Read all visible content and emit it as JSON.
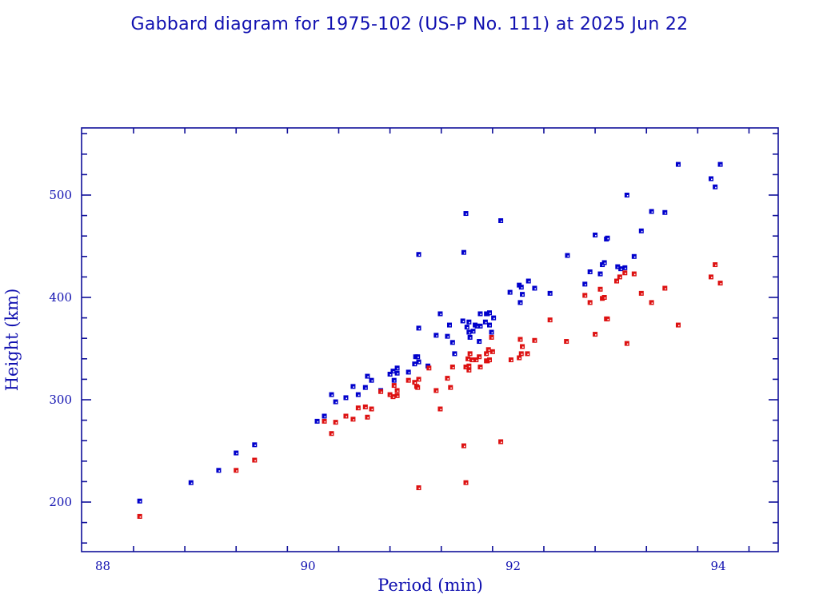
{
  "chart_data": {
    "type": "scatter",
    "title": "Gabbard diagram for 1975-102 (US-P No. 111) at 2025 Jun 22",
    "xlabel": "Period (min)",
    "ylabel": "Height (km)",
    "xlim": [
      87.8,
      94.6
    ],
    "ylim": [
      154,
      567
    ],
    "x_major_ticks": [
      88,
      90,
      92,
      94
    ],
    "x_tick_labels": [
      "88",
      "90",
      "92",
      "94"
    ],
    "x_minor_step": 0.5,
    "y_major_ticks": [
      200,
      300,
      400,
      500
    ],
    "y_tick_labels": [
      "200",
      "300",
      "400",
      "500"
    ],
    "y_minor_step": 20,
    "grid": false,
    "legend": "none",
    "series": [
      {
        "name": "Apogee",
        "color": "#0000cc",
        "points": [
          [
            88.36,
            201
          ],
          [
            88.86,
            219
          ],
          [
            89.13,
            231
          ],
          [
            89.3,
            248
          ],
          [
            89.48,
            256
          ],
          [
            90.09,
            279
          ],
          [
            90.16,
            284
          ],
          [
            90.23,
            305
          ],
          [
            90.27,
            298
          ],
          [
            90.37,
            302
          ],
          [
            90.44,
            313
          ],
          [
            90.49,
            305
          ],
          [
            90.56,
            312
          ],
          [
            90.58,
            323
          ],
          [
            90.62,
            319
          ],
          [
            90.71,
            309
          ],
          [
            90.8,
            325
          ],
          [
            90.83,
            328
          ],
          [
            90.84,
            319
          ],
          [
            90.87,
            331
          ],
          [
            90.87,
            326
          ],
          [
            90.98,
            327
          ],
          [
            91.04,
            335
          ],
          [
            91.05,
            342
          ],
          [
            91.07,
            342
          ],
          [
            91.08,
            337
          ],
          [
            91.08,
            370
          ],
          [
            91.08,
            442
          ],
          [
            91.17,
            333
          ],
          [
            91.25,
            363
          ],
          [
            91.29,
            384
          ],
          [
            91.38,
            373
          ],
          [
            91.36,
            362
          ],
          [
            91.41,
            356
          ],
          [
            91.43,
            345
          ],
          [
            91.52,
            444
          ],
          [
            91.51,
            377
          ],
          [
            91.54,
            482
          ],
          [
            91.55,
            371
          ],
          [
            91.57,
            376
          ],
          [
            91.57,
            366
          ],
          [
            91.58,
            361
          ],
          [
            91.61,
            367
          ],
          [
            91.63,
            373
          ],
          [
            91.65,
            372
          ],
          [
            91.68,
            372
          ],
          [
            91.67,
            357
          ],
          [
            91.68,
            384
          ],
          [
            91.74,
            384
          ],
          [
            91.75,
            384
          ],
          [
            91.77,
            385
          ],
          [
            91.73,
            376
          ],
          [
            91.77,
            373
          ],
          [
            91.79,
            366
          ],
          [
            91.81,
            380
          ],
          [
            91.88,
            475
          ],
          [
            91.97,
            405
          ],
          [
            92.06,
            412
          ],
          [
            92.08,
            410
          ],
          [
            92.09,
            403
          ],
          [
            92.07,
            395
          ],
          [
            92.15,
            416
          ],
          [
            92.21,
            409
          ],
          [
            92.36,
            404
          ],
          [
            92.53,
            441
          ],
          [
            92.7,
            413
          ],
          [
            92.75,
            425
          ],
          [
            92.8,
            461
          ],
          [
            92.85,
            423
          ],
          [
            92.87,
            432
          ],
          [
            92.89,
            434
          ],
          [
            92.91,
            457
          ],
          [
            92.92,
            458
          ],
          [
            93.02,
            430
          ],
          [
            93.05,
            428
          ],
          [
            93.09,
            429
          ],
          [
            93.11,
            500
          ],
          [
            93.18,
            440
          ],
          [
            93.25,
            465
          ],
          [
            93.35,
            484
          ],
          [
            93.48,
            483
          ],
          [
            93.61,
            530
          ],
          [
            93.93,
            516
          ],
          [
            93.97,
            508
          ],
          [
            94.02,
            530
          ]
        ]
      },
      {
        "name": "Perigee",
        "color": "#dd1111",
        "points": [
          [
            88.36,
            186
          ],
          [
            89.3,
            231
          ],
          [
            89.48,
            241
          ],
          [
            90.16,
            279
          ],
          [
            90.23,
            267
          ],
          [
            90.27,
            278
          ],
          [
            90.37,
            284
          ],
          [
            90.44,
            281
          ],
          [
            90.49,
            292
          ],
          [
            90.56,
            293
          ],
          [
            90.58,
            283
          ],
          [
            90.62,
            291
          ],
          [
            90.71,
            308
          ],
          [
            90.8,
            305
          ],
          [
            90.83,
            303
          ],
          [
            90.84,
            314
          ],
          [
            90.87,
            309
          ],
          [
            90.87,
            304
          ],
          [
            90.98,
            319
          ],
          [
            91.04,
            317
          ],
          [
            91.06,
            313
          ],
          [
            91.07,
            312
          ],
          [
            91.08,
            320
          ],
          [
            91.08,
            214
          ],
          [
            91.18,
            331
          ],
          [
            91.25,
            309
          ],
          [
            91.29,
            291
          ],
          [
            91.36,
            321
          ],
          [
            91.39,
            312
          ],
          [
            91.41,
            332
          ],
          [
            91.52,
            255
          ],
          [
            91.54,
            219
          ],
          [
            91.54,
            332
          ],
          [
            91.57,
            333
          ],
          [
            91.57,
            329
          ],
          [
            91.56,
            340
          ],
          [
            91.58,
            345
          ],
          [
            91.6,
            339
          ],
          [
            91.64,
            339
          ],
          [
            91.67,
            342
          ],
          [
            91.68,
            332
          ],
          [
            91.74,
            345
          ],
          [
            91.74,
            338
          ],
          [
            91.75,
            338
          ],
          [
            91.76,
            349
          ],
          [
            91.77,
            339
          ],
          [
            91.8,
            347
          ],
          [
            91.79,
            361
          ],
          [
            91.88,
            259
          ],
          [
            91.98,
            339
          ],
          [
            92.06,
            341
          ],
          [
            92.07,
            359
          ],
          [
            92.08,
            345
          ],
          [
            92.09,
            352
          ],
          [
            92.14,
            345
          ],
          [
            92.21,
            358
          ],
          [
            92.36,
            378
          ],
          [
            92.52,
            357
          ],
          [
            92.7,
            402
          ],
          [
            92.75,
            395
          ],
          [
            92.8,
            364
          ],
          [
            92.85,
            408
          ],
          [
            92.87,
            399
          ],
          [
            92.89,
            400
          ],
          [
            92.91,
            379
          ],
          [
            92.92,
            379
          ],
          [
            93.01,
            416
          ],
          [
            93.04,
            420
          ],
          [
            93.09,
            424
          ],
          [
            93.11,
            355
          ],
          [
            93.18,
            423
          ],
          [
            93.25,
            404
          ],
          [
            93.35,
            395
          ],
          [
            93.48,
            409
          ],
          [
            93.61,
            373
          ],
          [
            93.93,
            420
          ],
          [
            93.97,
            432
          ],
          [
            94.02,
            414
          ]
        ]
      }
    ]
  },
  "colors": {
    "axis": "#10109a",
    "text": "#1010b0"
  }
}
